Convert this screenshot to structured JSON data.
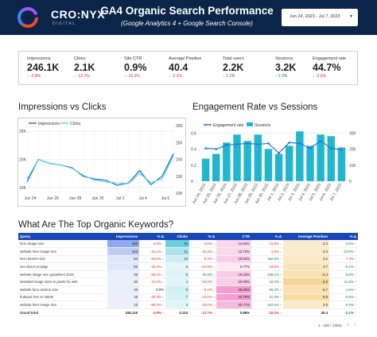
{
  "header": {
    "logo_text": "CRO:NYX",
    "logo_sub": "DIGITAL",
    "title": "GA4 Organic Search Performance",
    "subtitle": "(Google Analytics 4 + Google Search Console)",
    "date_range": "Jun 24, 2023 - Jul 7, 2023",
    "colors": {
      "header_bg": "#0a2547",
      "accent_blue": "#1a47b8"
    }
  },
  "kpis": [
    {
      "label": "Impressions",
      "value": "246.1K",
      "delta": "↓ -2.8%",
      "trend": "neg"
    },
    {
      "label": "Clicks",
      "value": "2.1K",
      "delta": "↓ -12.7%",
      "trend": "neg"
    },
    {
      "label": "Site CTR",
      "value": "0.9%",
      "delta": "↓ -10.2%",
      "trend": "neg"
    },
    {
      "label": "Average Position",
      "value": "40.4",
      "delta": "↓ -2.1%",
      "trend": "neg"
    },
    {
      "label": "Total users",
      "value": "2.2K",
      "delta": "↑ 1.1%",
      "trend": "pos"
    },
    {
      "label": "Sessions",
      "value": "3.2K",
      "delta": "↑ 2.3%",
      "trend": "pos"
    },
    {
      "label": "Engagement rate",
      "value": "44.7%",
      "delta": "↓ -3.6%",
      "trend": "neg"
    }
  ],
  "sections": {
    "impressions_clicks": "Impressions vs Clicks",
    "engagement_sessions": "Engagement Rate vs Sessions",
    "keywords": "What Are The Top Organic Keywords?"
  },
  "chart_data": [
    {
      "type": "line",
      "series": [
        {
          "name": "Impressions",
          "color": "#1f77d0",
          "values": [
            16.0,
            20.0,
            19.3,
            19.0,
            18.5,
            17.0,
            16.5,
            16.3,
            15.4,
            15.8,
            18.0,
            15.5,
            17.0,
            21.0
          ]
        },
        {
          "name": "Clicks",
          "color": "#5fd3e0",
          "values": [
            16.5,
            20.0,
            19.3,
            19.0,
            18.4,
            17.2,
            16.3,
            16.0,
            15.8,
            15.7,
            17.5,
            15.9,
            16.5,
            20.6
          ]
        }
      ],
      "y_ticks_left": [
        "15K",
        "20K",
        "25K"
      ],
      "y_ticks_right": [
        "100",
        "150",
        "200",
        "250",
        "300"
      ],
      "ylim": [
        14,
        26
      ],
      "x_ticks": [
        "Jun 24",
        "Jun 26",
        "Jun 28",
        "Jun 30",
        "Jul 2",
        "Jul 4",
        "Jul 6"
      ],
      "legend": "top-left",
      "grid": true
    },
    {
      "type": "bar",
      "categories": [
        "Jun 24, 2023",
        "Jun 25, 2023",
        "Jun 26, 2023",
        "Jun 27, 2023",
        "Jun 28, 2023",
        "Jun 29, 2023",
        "Jun 30, 2023",
        "Jul 1, 2023",
        "Jul 2, 2023",
        "Jul 3, 2023",
        "Jul 4, 2023",
        "Jul 5, 2023",
        "Jul 6, 2023",
        "Jul 7, 2023"
      ],
      "series": [
        {
          "name": "Sessions",
          "color": "#20b6cf",
          "kind": "bar",
          "values": [
            140,
            170,
            240,
            290,
            250,
            290,
            200,
            170,
            220,
            310,
            220,
            290,
            280,
            210
          ]
        },
        {
          "name": "Engagement rate",
          "color": "#1f77d0",
          "kind": "line",
          "values": [
            0.41,
            0.4,
            0.45,
            0.46,
            0.47,
            0.46,
            0.47,
            0.35,
            0.48,
            0.47,
            0.41,
            0.5,
            0.41,
            0.39
          ]
        }
      ],
      "y_ticks_left": [
        "0",
        "0.2",
        "0.4",
        "0.6"
      ],
      "y_ticks_right": [
        "0",
        "100",
        "200",
        "300"
      ],
      "legend": "top-left",
      "grid": true
    }
  ],
  "table": {
    "columns": [
      "Query",
      "Impressions",
      "% Δ",
      "Clicks",
      "% Δ",
      "CTR",
      "% Δ",
      "Average Position",
      "% Δ"
    ],
    "rows": [
      [
        "hero image size",
        "280",
        "-4.8% ↓",
        "41",
        "-3.6% ↓",
        "14.64%",
        "-10.8% ↓",
        "3.3",
        "-3.8% ↑"
      ],
      [
        "website hero image size",
        "153",
        "-31.1% ↓",
        "21",
        "-32.3% ↓",
        "13.73%",
        "-1.8% ↓",
        "3.3",
        "-10.8% ↑"
      ],
      [
        "hero banner size",
        "54",
        "-64.5% ↓",
        "10",
        "-8.2% ↓",
        "18.52%",
        "192.6% ↑",
        "3.6",
        "7.4% ↓"
      ],
      [
        "seo about us page",
        "52",
        "-33.3% ↓",
        "3",
        "-62.5% ↓",
        "5.77%",
        "-43.8% ↓",
        "4.7",
        "-0.2% ↑"
      ],
      [
        "website image size guidelines 2023",
        "26",
        "-58.1% ↓",
        "5",
        "25.0% ↑",
        "19.23%",
        "198.1% ↑",
        "5.4",
        "-5.9% ↑"
      ],
      [
        "standard image sizes in pixels for web",
        "20",
        "-31.0% ↓",
        "4",
        "-20.0% ↓",
        "20.00%",
        "16.0% ↑",
        "8.3",
        "-11.6% ↑"
      ],
      [
        "website hero section size",
        "20",
        "0.0%",
        "9",
        "-9.1% ↓",
        "45.00%",
        "56.3% ↑",
        "5.7",
        "-1.8% ↑"
      ],
      [
        "hubspot free vs starter",
        "16",
        "-33.3% ↓",
        "7",
        "-12.5% ↓",
        "43.75%",
        "31.3% ↑",
        "6.8",
        "-5.8% ↑"
      ],
      [
        "website hero image size",
        "13",
        "-68.3% ↓",
        "4",
        "-25.0% ↓",
        "30.77%",
        "164.6% ↑",
        "3.8",
        "-6.5% ↑"
      ]
    ],
    "total": [
      "Grand total",
      "246,116",
      "-2.8% ↓",
      "2,124",
      "-12.7% ↓",
      "0.86%",
      "-10.2% ↓",
      "40.4",
      "-2.1% ↑"
    ],
    "pagination": "1 - 100 / 13011"
  }
}
